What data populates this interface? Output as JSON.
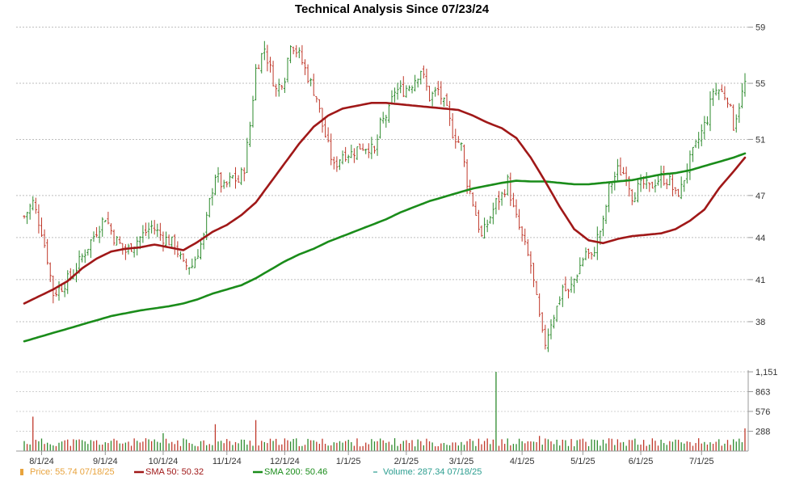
{
  "chart_data": {
    "type": "line",
    "title": "Technical Analysis Since 07/23/24",
    "x_tick_labels": [
      "8/1/24",
      "9/1/24",
      "10/1/24",
      "11/1/24",
      "12/1/24",
      "1/1/25",
      "2/1/25",
      "3/1/25",
      "4/1/25",
      "5/1/25",
      "6/1/25",
      "7/1/25"
    ],
    "price_panel": {
      "y_ticks": [
        "59",
        "55",
        "51",
        "47",
        "44",
        "41",
        "38"
      ],
      "ylim": [
        35,
        59.5
      ],
      "grid": true
    },
    "volume_panel": {
      "y_ticks": [
        "1,151",
        "863",
        "576",
        "288"
      ],
      "ylim": [
        0,
        1151
      ],
      "grid": true
    },
    "series": [
      {
        "name": "Price",
        "kind": "ohlc-bars",
        "color_up": "#2e8b2e",
        "color_down": "#c0392b",
        "anchors": [
          [
            0,
            45.5
          ],
          [
            3,
            46.5
          ],
          [
            6,
            44.5
          ],
          [
            8,
            42.5
          ],
          [
            10,
            40
          ],
          [
            13,
            40.5
          ],
          [
            17,
            41.5
          ],
          [
            21,
            43
          ],
          [
            25,
            44.5
          ],
          [
            28,
            45.5
          ],
          [
            31,
            44
          ],
          [
            35,
            43
          ],
          [
            40,
            44
          ],
          [
            44,
            44.8
          ],
          [
            48,
            44
          ],
          [
            52,
            43.5
          ],
          [
            55,
            42
          ],
          [
            58,
            42
          ],
          [
            62,
            44
          ],
          [
            64,
            46.5
          ],
          [
            66,
            48.5
          ],
          [
            69,
            47.5
          ],
          [
            72,
            48.3
          ],
          [
            74,
            48
          ],
          [
            76,
            49
          ],
          [
            78,
            52
          ],
          [
            80,
            56
          ],
          [
            83,
            57.5
          ],
          [
            85,
            56
          ],
          [
            87,
            54.5
          ],
          [
            90,
            55.5
          ],
          [
            92,
            58
          ],
          [
            95,
            57
          ],
          [
            98,
            55.5
          ],
          [
            101,
            54
          ],
          [
            103,
            52
          ],
          [
            105,
            50.5
          ],
          [
            107,
            49
          ],
          [
            110,
            50
          ],
          [
            113,
            50
          ],
          [
            116,
            50.5
          ],
          [
            119,
            50.5
          ],
          [
            121,
            50
          ],
          [
            123,
            52
          ],
          [
            126,
            53
          ],
          [
            128,
            54.5
          ],
          [
            131,
            54.5
          ],
          [
            134,
            55
          ],
          [
            137,
            56
          ],
          [
            140,
            54
          ],
          [
            143,
            54.5
          ],
          [
            146,
            53
          ],
          [
            148,
            51.5
          ],
          [
            151,
            50.5
          ],
          [
            153,
            48
          ],
          [
            155,
            46.5
          ],
          [
            158,
            44
          ],
          [
            160,
            45
          ],
          [
            163,
            46.5
          ],
          [
            165,
            47
          ],
          [
            167,
            48
          ],
          [
            169,
            46
          ],
          [
            172,
            44
          ],
          [
            175,
            42
          ],
          [
            177,
            39.5
          ],
          [
            179,
            37
          ],
          [
            180,
            36.5
          ],
          [
            182,
            38
          ],
          [
            184,
            39
          ],
          [
            186,
            40.5
          ],
          [
            188,
            40
          ],
          [
            190,
            41
          ],
          [
            192,
            42
          ],
          [
            194,
            43
          ],
          [
            196,
            42.5
          ],
          [
            198,
            44
          ],
          [
            200,
            45
          ],
          [
            202,
            47.5
          ],
          [
            205,
            48.8
          ],
          [
            208,
            48.5
          ],
          [
            210,
            47
          ],
          [
            212,
            47.5
          ],
          [
            214,
            47.8
          ],
          [
            216,
            47.5
          ],
          [
            218,
            48
          ],
          [
            220,
            48.3
          ],
          [
            223,
            48
          ],
          [
            225,
            47
          ],
          [
            227,
            47.5
          ],
          [
            229,
            49
          ],
          [
            232,
            50.5
          ],
          [
            234,
            51.5
          ],
          [
            236,
            52.5
          ],
          [
            238,
            54.5
          ],
          [
            240,
            54.5
          ],
          [
            243,
            54
          ],
          [
            245,
            52
          ],
          [
            247,
            53.5
          ],
          [
            249,
            55
          ]
        ],
        "last": 55.74,
        "last_date": "07/18/25"
      },
      {
        "name": "SMA 50",
        "kind": "line",
        "color": "#a01818",
        "points": [
          [
            0,
            39.3
          ],
          [
            5,
            39.8
          ],
          [
            10,
            40.3
          ],
          [
            15,
            40.9
          ],
          [
            20,
            41.8
          ],
          [
            25,
            42.5
          ],
          [
            30,
            43
          ],
          [
            35,
            43.2
          ],
          [
            40,
            43.3
          ],
          [
            45,
            43.5
          ],
          [
            50,
            43.3
          ],
          [
            55,
            43.1
          ],
          [
            60,
            43.7
          ],
          [
            65,
            44.4
          ],
          [
            70,
            44.9
          ],
          [
            75,
            45.6
          ],
          [
            80,
            46.5
          ],
          [
            85,
            47.9
          ],
          [
            90,
            49.3
          ],
          [
            95,
            50.7
          ],
          [
            100,
            51.9
          ],
          [
            105,
            52.7
          ],
          [
            110,
            53.2
          ],
          [
            115,
            53.4
          ],
          [
            120,
            53.6
          ],
          [
            125,
            53.6
          ],
          [
            130,
            53.5
          ],
          [
            135,
            53.4
          ],
          [
            140,
            53.3
          ],
          [
            145,
            53.2
          ],
          [
            150,
            53.1
          ],
          [
            155,
            52.7
          ],
          [
            160,
            52.2
          ],
          [
            165,
            51.8
          ],
          [
            170,
            51.1
          ],
          [
            175,
            49.7
          ],
          [
            180,
            48
          ],
          [
            185,
            46.2
          ],
          [
            190,
            44.6
          ],
          [
            195,
            43.8
          ],
          [
            200,
            43.6
          ],
          [
            205,
            43.9
          ],
          [
            210,
            44.1
          ],
          [
            215,
            44.2
          ],
          [
            220,
            44.3
          ],
          [
            225,
            44.6
          ],
          [
            230,
            45.2
          ],
          [
            235,
            46
          ],
          [
            240,
            47.5
          ],
          [
            245,
            48.7
          ],
          [
            249,
            49.7
          ]
        ],
        "last": 50.32
      },
      {
        "name": "SMA 200",
        "kind": "line",
        "color": "#1a8c1a",
        "points": [
          [
            0,
            36.6
          ],
          [
            10,
            37.2
          ],
          [
            20,
            37.8
          ],
          [
            30,
            38.4
          ],
          [
            40,
            38.8
          ],
          [
            50,
            39.1
          ],
          [
            55,
            39.3
          ],
          [
            60,
            39.6
          ],
          [
            65,
            40
          ],
          [
            70,
            40.3
          ],
          [
            75,
            40.6
          ],
          [
            80,
            41.1
          ],
          [
            85,
            41.7
          ],
          [
            90,
            42.3
          ],
          [
            95,
            42.8
          ],
          [
            100,
            43.2
          ],
          [
            105,
            43.7
          ],
          [
            110,
            44.1
          ],
          [
            115,
            44.5
          ],
          [
            120,
            44.9
          ],
          [
            125,
            45.3
          ],
          [
            130,
            45.8
          ],
          [
            135,
            46.2
          ],
          [
            140,
            46.6
          ],
          [
            145,
            46.9
          ],
          [
            150,
            47.2
          ],
          [
            155,
            47.5
          ],
          [
            160,
            47.7
          ],
          [
            165,
            47.9
          ],
          [
            170,
            48.05
          ],
          [
            175,
            48
          ],
          [
            180,
            48
          ],
          [
            185,
            47.9
          ],
          [
            190,
            47.8
          ],
          [
            195,
            47.8
          ],
          [
            200,
            47.9
          ],
          [
            205,
            48
          ],
          [
            210,
            48.1
          ],
          [
            215,
            48.3
          ],
          [
            220,
            48.5
          ],
          [
            225,
            48.6
          ],
          [
            230,
            48.8
          ],
          [
            235,
            49.1
          ],
          [
            240,
            49.4
          ],
          [
            245,
            49.7
          ],
          [
            249,
            50
          ]
        ],
        "last": 50.46
      },
      {
        "name": "Volume",
        "kind": "bars",
        "color": "#2a9d8f",
        "baseline": 150,
        "spikes": [
          [
            3,
            500
          ],
          [
            48,
            260
          ],
          [
            66,
            390
          ],
          [
            80,
            450
          ],
          [
            163,
            1151
          ],
          [
            178,
            220
          ],
          [
            249,
            330
          ]
        ],
        "last": 287.34,
        "last_date": "07/18/25"
      }
    ],
    "legend": [
      {
        "label": "Price: 55.74  07/18/25",
        "color": "#e8a33d",
        "marker": "square"
      },
      {
        "label": "SMA 50: 50.32",
        "color": "#a01818",
        "marker": "line"
      },
      {
        "label": "SMA 200: 50.46",
        "color": "#1a8c1a",
        "marker": "line"
      },
      {
        "label": "Volume: 287.34  07/18/25",
        "color": "#2a9d8f",
        "marker": "tick"
      }
    ],
    "legend_placement": "bottom"
  }
}
